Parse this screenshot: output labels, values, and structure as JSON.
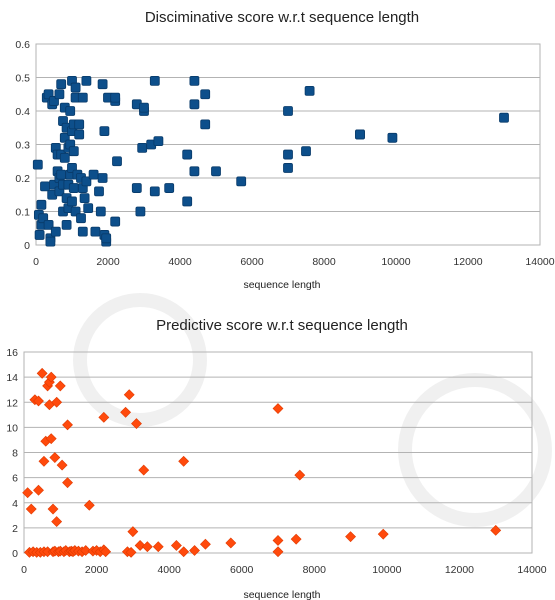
{
  "chart_data": [
    {
      "type": "scatter",
      "title": "Disciminative score w.r.t sequence length",
      "xlabel": "sequence length",
      "ylabel": "",
      "xlim": [
        0,
        14000
      ],
      "ylim": [
        0,
        0.6
      ],
      "xticks": [
        0,
        2000,
        4000,
        6000,
        8000,
        10000,
        12000,
        14000
      ],
      "yticks": [
        0,
        0.1,
        0.2,
        0.3,
        0.4,
        0.5,
        0.6
      ],
      "grid": "horizontal",
      "marker": "square",
      "color": "#0d4f8b",
      "points": [
        [
          50,
          0.24
        ],
        [
          80,
          0.09
        ],
        [
          100,
          0.03
        ],
        [
          150,
          0.06
        ],
        [
          150,
          0.12
        ],
        [
          200,
          0.08
        ],
        [
          250,
          0.175
        ],
        [
          300,
          0.44
        ],
        [
          350,
          0.45
        ],
        [
          350,
          0.06
        ],
        [
          400,
          0.02
        ],
        [
          400,
          0.01
        ],
        [
          450,
          0.42
        ],
        [
          450,
          0.15
        ],
        [
          500,
          0.43
        ],
        [
          500,
          0.18
        ],
        [
          550,
          0.04
        ],
        [
          550,
          0.29
        ],
        [
          600,
          0.27
        ],
        [
          600,
          0.22
        ],
        [
          650,
          0.2
        ],
        [
          650,
          0.16
        ],
        [
          650,
          0.45
        ],
        [
          700,
          0.48
        ],
        [
          700,
          0.27
        ],
        [
          700,
          0.21
        ],
        [
          750,
          0.18
        ],
        [
          750,
          0.1
        ],
        [
          750,
          0.37
        ],
        [
          800,
          0.41
        ],
        [
          800,
          0.32
        ],
        [
          800,
          0.26
        ],
        [
          850,
          0.35
        ],
        [
          850,
          0.06
        ],
        [
          850,
          0.14
        ],
        [
          900,
          0.29
        ],
        [
          900,
          0.18
        ],
        [
          900,
          0.11
        ],
        [
          950,
          0.4
        ],
        [
          950,
          0.3
        ],
        [
          950,
          0.21
        ],
        [
          1000,
          0.49
        ],
        [
          1000,
          0.34
        ],
        [
          1000,
          0.23
        ],
        [
          1000,
          0.13
        ],
        [
          1050,
          0.36
        ],
        [
          1050,
          0.28
        ],
        [
          1050,
          0.17
        ],
        [
          1100,
          0.47
        ],
        [
          1100,
          0.44
        ],
        [
          1100,
          0.1
        ],
        [
          1150,
          0.21
        ],
        [
          1200,
          0.36
        ],
        [
          1200,
          0.33
        ],
        [
          1250,
          0.2
        ],
        [
          1250,
          0.08
        ],
        [
          1300,
          0.44
        ],
        [
          1300,
          0.17
        ],
        [
          1300,
          0.04
        ],
        [
          1350,
          0.14
        ],
        [
          1400,
          0.49
        ],
        [
          1400,
          0.19
        ],
        [
          1450,
          0.11
        ],
        [
          1600,
          0.21
        ],
        [
          1650,
          0.04
        ],
        [
          1750,
          0.16
        ],
        [
          1800,
          0.1
        ],
        [
          1850,
          0.2
        ],
        [
          1850,
          0.48
        ],
        [
          1900,
          0.34
        ],
        [
          1900,
          0.03
        ],
        [
          1950,
          0.01
        ],
        [
          1950,
          0.02
        ],
        [
          2000,
          0.44
        ],
        [
          2200,
          0.43
        ],
        [
          2200,
          0.44
        ],
        [
          2200,
          0.07
        ],
        [
          2250,
          0.25
        ],
        [
          2800,
          0.42
        ],
        [
          2800,
          0.17
        ],
        [
          2900,
          0.1
        ],
        [
          2950,
          0.29
        ],
        [
          3000,
          0.4
        ],
        [
          3000,
          0.41
        ],
        [
          3200,
          0.3
        ],
        [
          3300,
          0.49
        ],
        [
          3300,
          0.16
        ],
        [
          3400,
          0.31
        ],
        [
          3700,
          0.17
        ],
        [
          4200,
          0.27
        ],
        [
          4200,
          0.13
        ],
        [
          4400,
          0.49
        ],
        [
          4400,
          0.42
        ],
        [
          4400,
          0.22
        ],
        [
          4700,
          0.36
        ],
        [
          4700,
          0.45
        ],
        [
          5000,
          0.22
        ],
        [
          5700,
          0.19
        ],
        [
          7000,
          0.4
        ],
        [
          7000,
          0.27
        ],
        [
          7000,
          0.23
        ],
        [
          7500,
          0.28
        ],
        [
          7600,
          0.46
        ],
        [
          9000,
          0.33
        ],
        [
          9000,
          0.33
        ],
        [
          9900,
          0.32
        ],
        [
          13000,
          0.38
        ]
      ]
    },
    {
      "type": "scatter",
      "title": "Predictive score w.r.t sequence length",
      "xlabel": "sequence length",
      "ylabel": "",
      "xlim": [
        0,
        14000
      ],
      "ylim": [
        0,
        16
      ],
      "xticks": [
        0,
        2000,
        4000,
        6000,
        8000,
        10000,
        12000,
        14000
      ],
      "yticks": [
        0,
        2,
        4,
        6,
        8,
        10,
        12,
        14,
        16
      ],
      "grid": "horizontal",
      "marker": "diamond",
      "color": "#ff4a0c",
      "points": [
        [
          100,
          4.8
        ],
        [
          150,
          0.05
        ],
        [
          200,
          3.5
        ],
        [
          250,
          0.1
        ],
        [
          300,
          12.2
        ],
        [
          350,
          0.05
        ],
        [
          400,
          12.1
        ],
        [
          400,
          5.0
        ],
        [
          450,
          0.05
        ],
        [
          500,
          14.3
        ],
        [
          550,
          0.1
        ],
        [
          550,
          7.3
        ],
        [
          600,
          8.9
        ],
        [
          650,
          0.1
        ],
        [
          650,
          13.3
        ],
        [
          700,
          13.6
        ],
        [
          700,
          11.8
        ],
        [
          750,
          14.0
        ],
        [
          750,
          9.1
        ],
        [
          800,
          0.1
        ],
        [
          800,
          3.5
        ],
        [
          850,
          0.15
        ],
        [
          850,
          7.6
        ],
        [
          900,
          12.0
        ],
        [
          900,
          2.5
        ],
        [
          950,
          0.1
        ],
        [
          1000,
          0.15
        ],
        [
          1000,
          13.3
        ],
        [
          1050,
          7.0
        ],
        [
          1100,
          0.1
        ],
        [
          1150,
          0.2
        ],
        [
          1200,
          10.2
        ],
        [
          1200,
          5.6
        ],
        [
          1250,
          0.1
        ],
        [
          1300,
          0.15
        ],
        [
          1350,
          0.1
        ],
        [
          1400,
          0.2
        ],
        [
          1500,
          0.15
        ],
        [
          1600,
          0.1
        ],
        [
          1700,
          0.2
        ],
        [
          1800,
          3.8
        ],
        [
          1900,
          0.15
        ],
        [
          2000,
          0.2
        ],
        [
          2100,
          0.1
        ],
        [
          2200,
          10.8
        ],
        [
          2200,
          0.25
        ],
        [
          2250,
          0.1
        ],
        [
          2800,
          11.2
        ],
        [
          2850,
          0.1
        ],
        [
          2900,
          12.6
        ],
        [
          2950,
          0.05
        ],
        [
          3000,
          1.7
        ],
        [
          3100,
          10.3
        ],
        [
          3200,
          0.6
        ],
        [
          3300,
          6.6
        ],
        [
          3400,
          0.5
        ],
        [
          3700,
          0.5
        ],
        [
          4200,
          0.6
        ],
        [
          4400,
          7.3
        ],
        [
          4400,
          0.1
        ],
        [
          4700,
          0.2
        ],
        [
          5000,
          0.7
        ],
        [
          5700,
          0.8
        ],
        [
          7000,
          11.5
        ],
        [
          7000,
          1.0
        ],
        [
          7000,
          0.1
        ],
        [
          7500,
          1.1
        ],
        [
          7600,
          6.2
        ],
        [
          9000,
          1.3
        ],
        [
          9900,
          1.5
        ],
        [
          13000,
          1.8
        ]
      ]
    }
  ]
}
